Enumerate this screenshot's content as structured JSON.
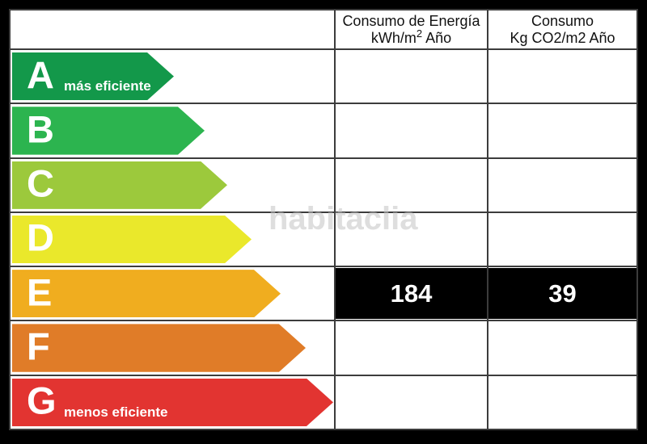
{
  "watermark": "habitaclia",
  "header": {
    "energy": {
      "line1": "Consumo de Energía",
      "line2_pre": "kWh/m",
      "line2_sup": "2",
      "line2_post": " Año"
    },
    "co2": {
      "line1": "Consumo",
      "line2": "Kg CO2/m2 Año"
    }
  },
  "ratings": [
    {
      "letter": "A",
      "label": "más eficiente",
      "color": "#13984a",
      "arrow_width": 200
    },
    {
      "letter": "B",
      "label": "",
      "color": "#2cb44f",
      "arrow_width": 238
    },
    {
      "letter": "C",
      "label": "",
      "color": "#9cc93c",
      "arrow_width": 266
    },
    {
      "letter": "D",
      "label": "",
      "color": "#eae82b",
      "arrow_width": 296
    },
    {
      "letter": "E",
      "label": "",
      "color": "#f0ad1f",
      "arrow_width": 332
    },
    {
      "letter": "F",
      "label": "",
      "color": "#e07c28",
      "arrow_width": 363
    },
    {
      "letter": "G",
      "label": "menos eficiente",
      "color": "#e23431",
      "arrow_width": 397
    }
  ],
  "values": {
    "energy": "184",
    "co2": "39",
    "assigned_row": "E"
  },
  "colors": {
    "grid_line": "#3c3c3c",
    "frame": "#000000",
    "value_cell_bg": "#000000",
    "value_cell_text": "#ffffff"
  },
  "chart_data": {
    "type": "table",
    "title": "Energy efficiency rating scale (Spanish energy certificate)",
    "columns": [
      "Consumo de Energía kWh/m2 Año",
      "Consumo Kg CO2/m2 Año"
    ],
    "rating_scale": [
      "A",
      "B",
      "C",
      "D",
      "E",
      "F",
      "G"
    ],
    "scale_endpoint_labels": {
      "A": "más eficiente",
      "G": "menos eficiente"
    },
    "assigned_rating": "E",
    "values": [
      184,
      39
    ]
  }
}
